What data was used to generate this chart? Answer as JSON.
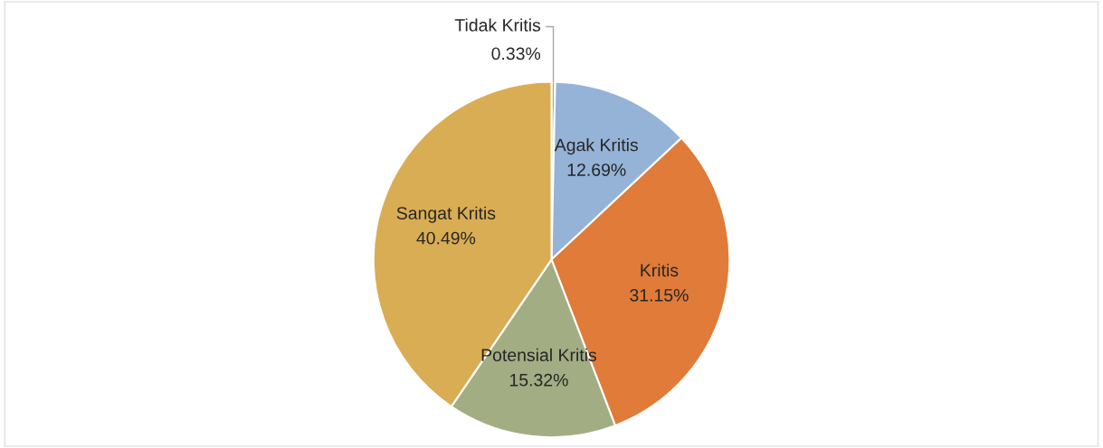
{
  "chart_data": {
    "type": "pie",
    "categories": [
      "Tidak Kritis",
      "Agak Kritis",
      "Kritis",
      "Potensial Kritis",
      "Sangat Kritis"
    ],
    "values": [
      0.33,
      12.69,
      31.15,
      15.32,
      40.49
    ],
    "value_labels": [
      "0.33%",
      "12.69%",
      "31.15%",
      "15.32%",
      "40.49%"
    ],
    "colors": [
      "#9bbb59",
      "#95b3d7",
      "#e07b39",
      "#a3ad83",
      "#d9ad54"
    ]
  }
}
